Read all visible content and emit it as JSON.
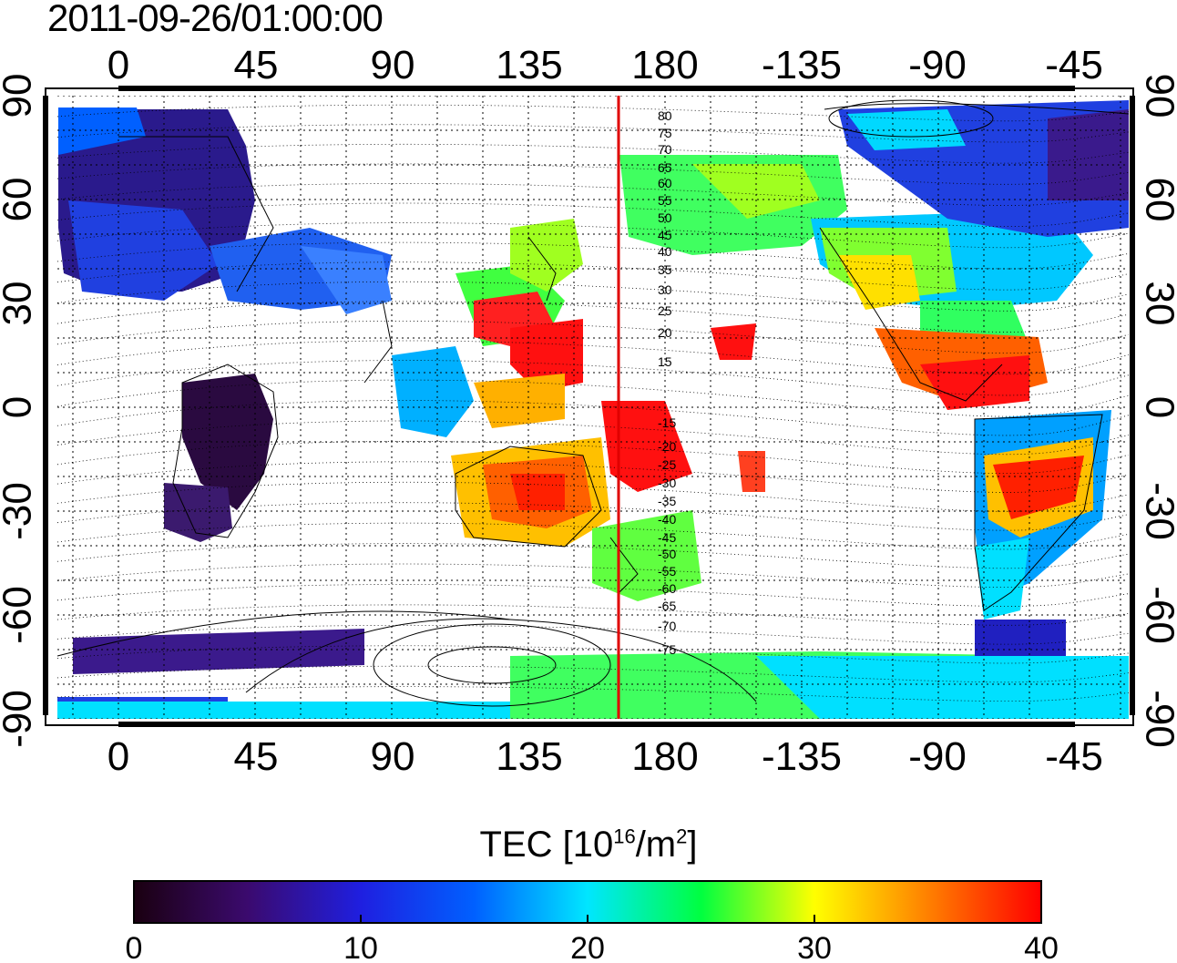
{
  "title": "2011-09-26/01:00:00",
  "map": {
    "top_ticks": [
      "0",
      "45",
      "90",
      "135",
      "180",
      "-135",
      "-90",
      "-45"
    ],
    "bottom_ticks": [
      "0",
      "45",
      "90",
      "135",
      "180",
      "-135",
      "-90",
      "-45"
    ],
    "left_ticks": [
      "90",
      "60",
      "30",
      "0",
      "-30",
      "-60",
      "-90"
    ],
    "right_ticks": [
      "90",
      "60",
      "30",
      "0",
      "-30",
      "-60",
      "-90"
    ],
    "contour_labels": [
      "80",
      "75",
      "70",
      "65",
      "60",
      "55",
      "50",
      "45",
      "40",
      "35",
      "30",
      "25",
      "20",
      "15",
      "-15",
      "-20",
      "-25",
      "-30",
      "-35",
      "-40",
      "-45",
      "-50",
      "-55",
      "-60",
      "-65",
      "-70",
      "-75"
    ],
    "meridian_line_color": "#e00000"
  },
  "colorbar": {
    "label_main": "TEC  [10",
    "label_sup1": "16",
    "label_mid": "/m",
    "label_sup2": "2",
    "label_end": "]",
    "ticks": [
      "0",
      "10",
      "20",
      "30",
      "40"
    ],
    "range": [
      0,
      40
    ],
    "colors": [
      "#1a0010",
      "#3b0a6e",
      "#1f1fe0",
      "#0060ff",
      "#00e6ff",
      "#00ff40",
      "#ffff00",
      "#ff8000",
      "#ff0000"
    ]
  }
}
